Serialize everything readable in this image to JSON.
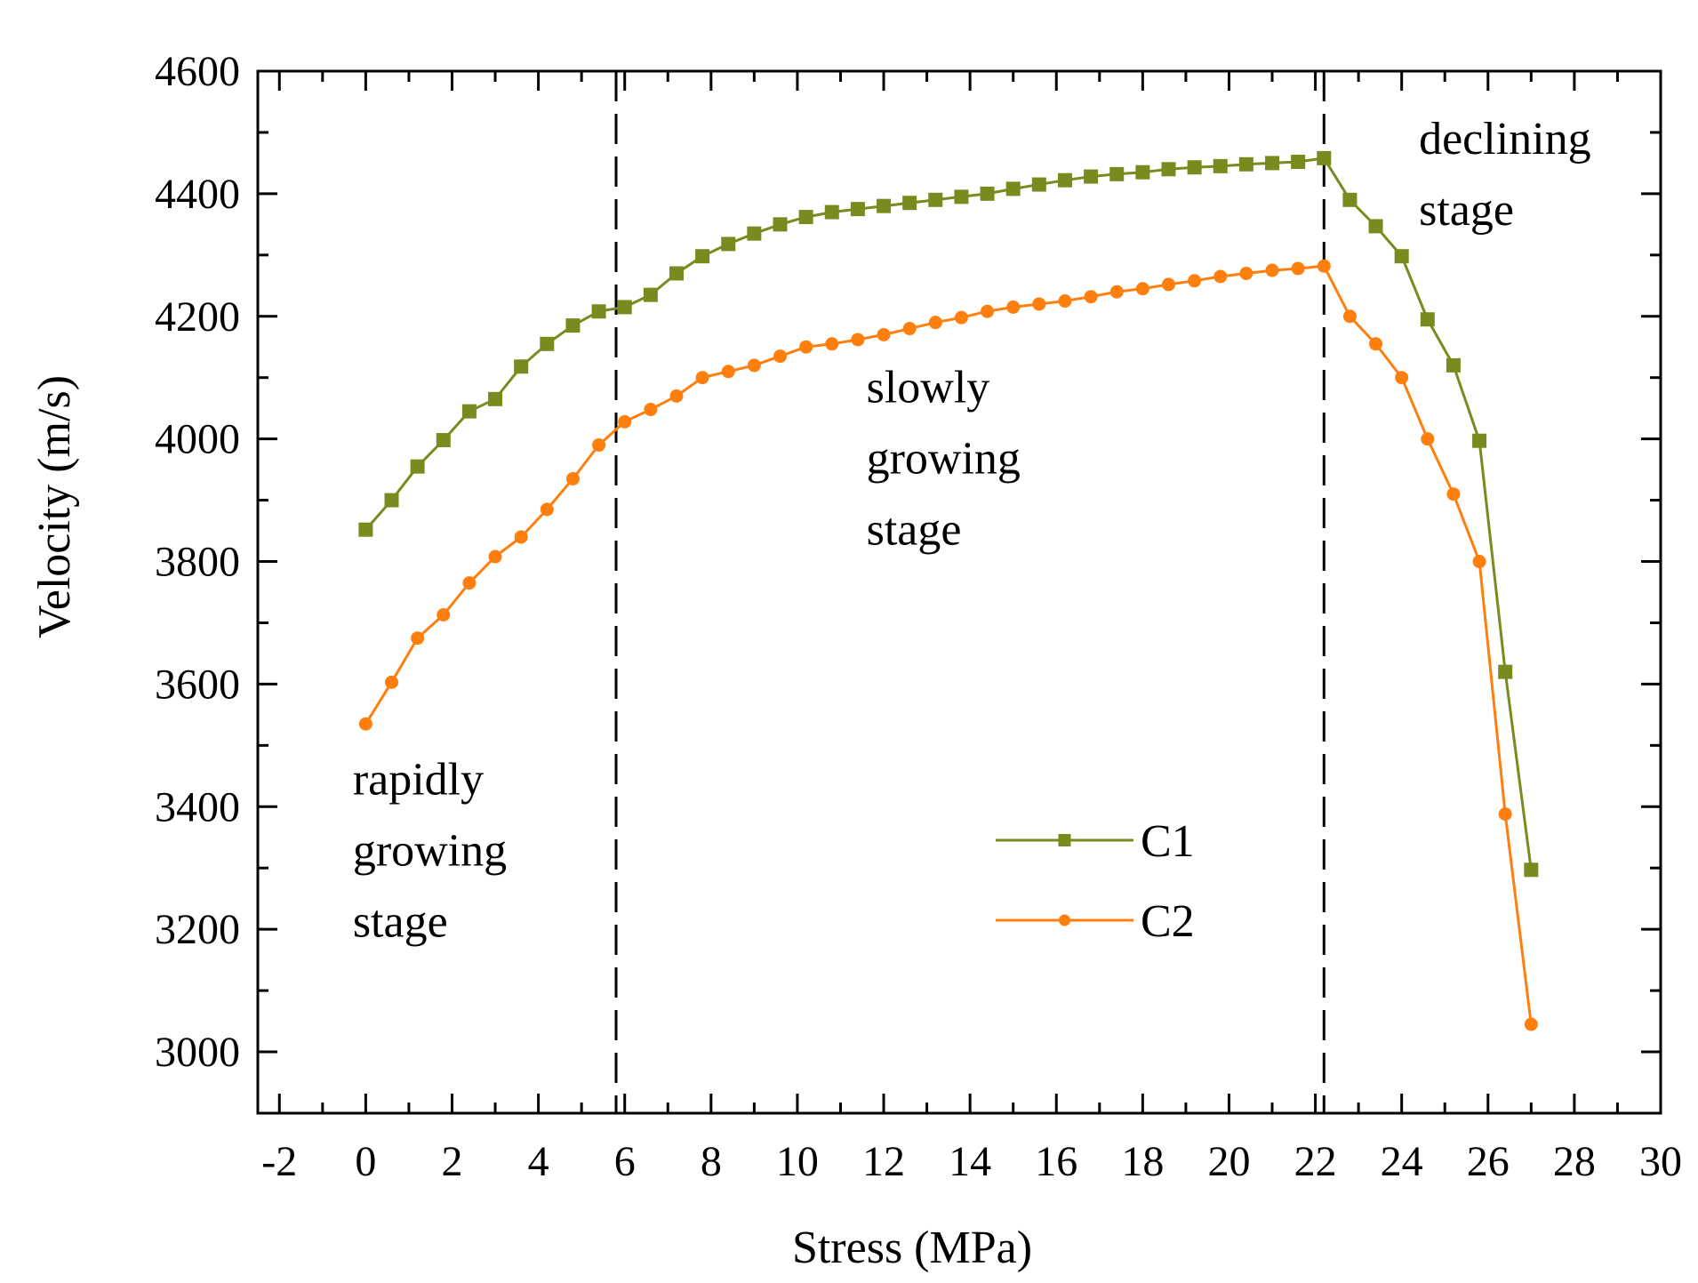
{
  "chart_data": {
    "type": "line",
    "title": "",
    "xlabel": "Stress (MPa)",
    "ylabel": "Velocity (m/s)",
    "xlim": [
      -2.5,
      30.0
    ],
    "ylim": [
      2900,
      4600
    ],
    "xticks": [
      -2,
      0,
      2,
      4,
      6,
      8,
      10,
      12,
      14,
      16,
      18,
      20,
      22,
      24,
      26,
      28,
      30
    ],
    "yticks": [
      3000,
      3200,
      3400,
      3600,
      3800,
      4000,
      4200,
      4400,
      4600
    ],
    "grid": false,
    "legend_position": "lower-center",
    "series": [
      {
        "name": "C1",
        "color": "#7a8a1e",
        "marker": "square",
        "x": [
          0,
          0.6,
          1.2,
          1.8,
          2.4,
          3.0,
          3.6,
          4.2,
          4.8,
          5.4,
          6.0,
          6.6,
          7.2,
          7.8,
          8.4,
          9.0,
          9.6,
          10.2,
          10.8,
          11.4,
          12.0,
          12.6,
          13.2,
          13.8,
          14.4,
          15.0,
          15.6,
          16.2,
          16.8,
          17.4,
          18.0,
          18.6,
          19.2,
          19.8,
          20.4,
          21.0,
          21.6,
          22.2,
          22.8,
          23.4,
          24.0,
          24.6,
          25.2,
          25.8,
          26.4,
          27.0
        ],
        "y": [
          3852,
          3900,
          3955,
          3998,
          4045,
          4065,
          4118,
          4155,
          4185,
          4208,
          4215,
          4235,
          4270,
          4298,
          4318,
          4335,
          4350,
          4362,
          4370,
          4375,
          4380,
          4385,
          4390,
          4395,
          4400,
          4408,
          4415,
          4422,
          4428,
          4432,
          4435,
          4440,
          4443,
          4445,
          4448,
          4450,
          4452,
          4458,
          4390,
          4347,
          4298,
          4195,
          4120,
          3997,
          3620,
          3297
        ]
      },
      {
        "name": "C2",
        "color": "#ff7f0e",
        "marker": "circle",
        "x": [
          0,
          0.6,
          1.2,
          1.8,
          2.4,
          3.0,
          3.6,
          4.2,
          4.8,
          5.4,
          6.0,
          6.6,
          7.2,
          7.8,
          8.4,
          9.0,
          9.6,
          10.2,
          10.8,
          11.4,
          12.0,
          12.6,
          13.2,
          13.8,
          14.4,
          15.0,
          15.6,
          16.2,
          16.8,
          17.4,
          18.0,
          18.6,
          19.2,
          19.8,
          20.4,
          21.0,
          21.6,
          22.2,
          22.8,
          23.4,
          24.0,
          24.6,
          25.2,
          25.8,
          26.4,
          27.0
        ],
        "y": [
          3535,
          3603,
          3675,
          3713,
          3765,
          3808,
          3840,
          3885,
          3935,
          3990,
          4028,
          4048,
          4070,
          4100,
          4110,
          4120,
          4135,
          4150,
          4155,
          4162,
          4170,
          4180,
          4190,
          4198,
          4208,
          4215,
          4220,
          4225,
          4232,
          4240,
          4245,
          4252,
          4258,
          4265,
          4270,
          4275,
          4278,
          4282,
          4200,
          4155,
          4100,
          4000,
          3910,
          3800,
          3388,
          3045
        ]
      }
    ],
    "reference_lines": [
      {
        "axis": "x",
        "value": 5.8,
        "style": "dashed",
        "color": "#000000"
      },
      {
        "axis": "x",
        "value": 22.2,
        "style": "dashed",
        "color": "#000000"
      }
    ],
    "annotations": [
      {
        "name": "rapidly-stage",
        "lines": [
          "rapidly",
          "growing",
          "stage"
        ],
        "anchor_x": -0.3,
        "anchor_y": 3420
      },
      {
        "name": "slowly-stage",
        "lines": [
          "slowly",
          "growing",
          "stage"
        ],
        "anchor_x": 11.6,
        "anchor_y": 4060
      },
      {
        "name": "declining-stage",
        "lines": [
          "declining",
          "stage"
        ],
        "anchor_x": 24.4,
        "anchor_y": 4465
      }
    ]
  }
}
